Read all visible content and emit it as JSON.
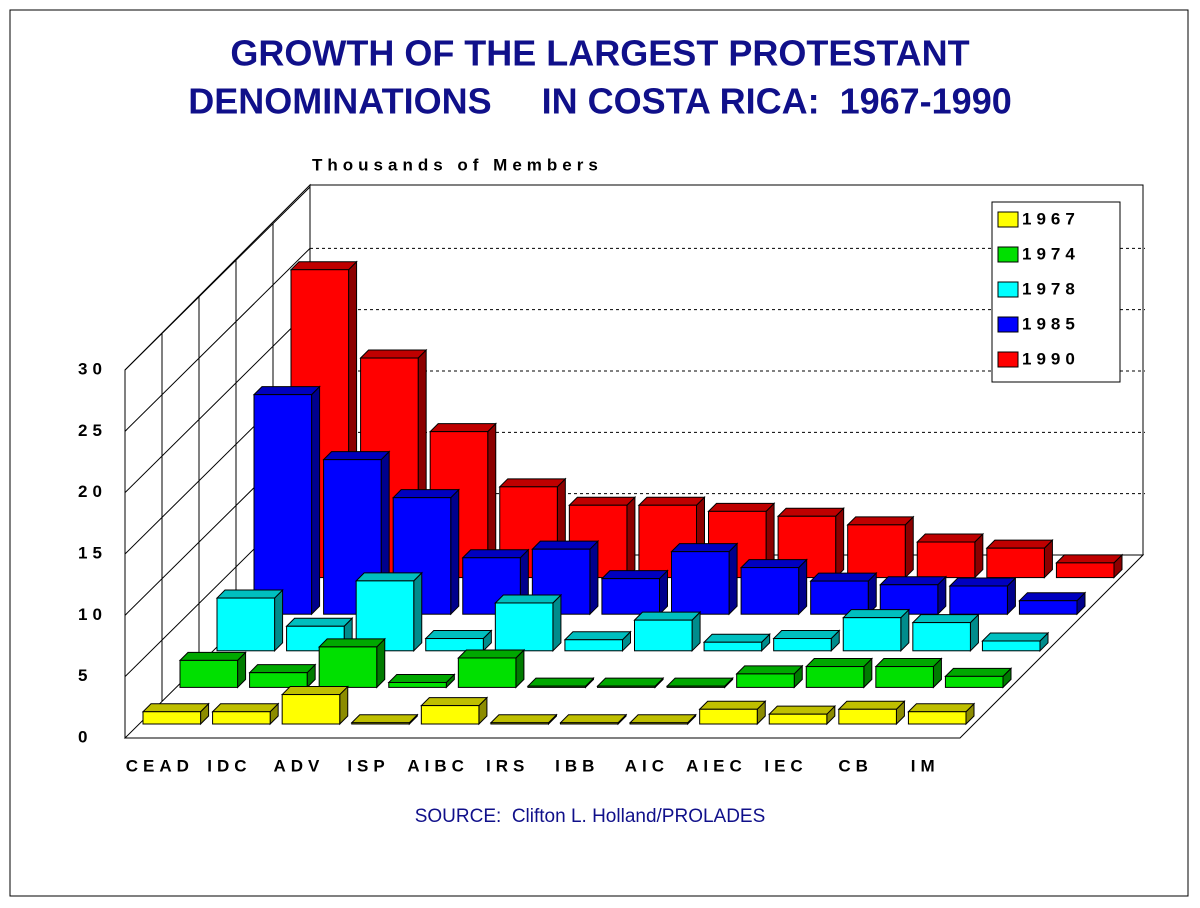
{
  "chart_data": {
    "type": "bar3d",
    "title": [
      "GROWTH OF THE LARGEST PROTESTANT",
      "DENOMINATIONS     IN COSTA RICA:  1967-1990"
    ],
    "y_label": "Thousands of Members",
    "source": "SOURCE:  Clifton L. Holland/PROLADES",
    "categories": [
      "CEAD",
      "IDC",
      "ADV",
      "ISP",
      "AIBC",
      "IRS",
      "IBB",
      "AIC",
      "AIEC",
      "IEC",
      "CB",
      "IM"
    ],
    "series": [
      {
        "name": "1967",
        "color": "#ffff00",
        "values": [
          1,
          1,
          2.4,
          0.1,
          1.5,
          0.1,
          0.1,
          0.1,
          1.2,
          0.8,
          1.2,
          1
        ]
      },
      {
        "name": "1974",
        "color": "#00e000",
        "values": [
          2.2,
          1.2,
          3.3,
          0.4,
          2.4,
          0.1,
          0.1,
          0.1,
          1.1,
          1.7,
          1.7,
          0.9
        ]
      },
      {
        "name": "1978",
        "color": "#00ffff",
        "values": [
          4.3,
          2,
          5.7,
          1,
          3.9,
          0.9,
          2.5,
          0.7,
          1,
          2.7,
          2.3,
          0.8
        ]
      },
      {
        "name": "1985",
        "color": "#0000ff",
        "values": [
          17.9,
          12.6,
          9.5,
          4.6,
          5.3,
          2.9,
          5.1,
          3.8,
          2.7,
          2.4,
          2.3,
          1.1
        ]
      },
      {
        "name": "1990",
        "color": "#ff0000",
        "values": [
          25.1,
          17.9,
          11.9,
          7.4,
          5.9,
          5.9,
          5.4,
          5,
          4.3,
          2.9,
          2.4,
          1.2
        ]
      }
    ],
    "ylim": [
      0,
      30
    ],
    "yticks": [
      0,
      5,
      10,
      15,
      20,
      25,
      30
    ],
    "grid": true,
    "legend": "top-right"
  }
}
